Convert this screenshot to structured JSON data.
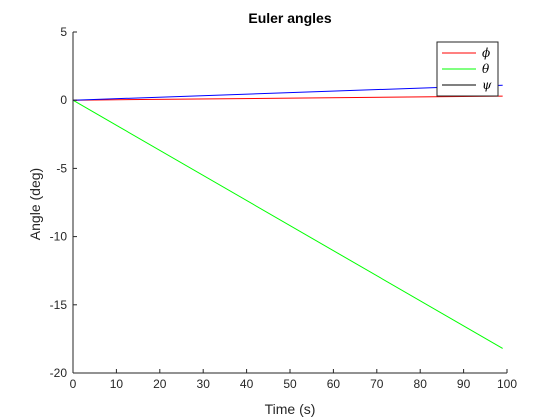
{
  "chart_data": {
    "type": "line",
    "title": "Euler angles",
    "xlabel": "Time (s)",
    "ylabel": "Angle (deg)",
    "xlim": [
      0,
      100
    ],
    "ylim": [
      -20,
      5
    ],
    "xticks": [
      0,
      10,
      20,
      30,
      40,
      50,
      60,
      70,
      80,
      90,
      100
    ],
    "yticks": [
      5,
      0,
      -5,
      -10,
      -15,
      -20
    ],
    "grid": false,
    "legend_position": "top-right",
    "x": [
      0,
      99
    ],
    "series": [
      {
        "name": "ϕ",
        "color": "#ff0000",
        "values": [
          0,
          0.3
        ]
      },
      {
        "name": "θ",
        "color": "#00ff00",
        "values": [
          0,
          -18.2
        ]
      },
      {
        "name": "ψ",
        "color": "#0000ff",
        "values": [
          0,
          1.1
        ]
      }
    ],
    "legend_line_colors": [
      "#ff0000",
      "#00ff00",
      "#000000"
    ]
  }
}
